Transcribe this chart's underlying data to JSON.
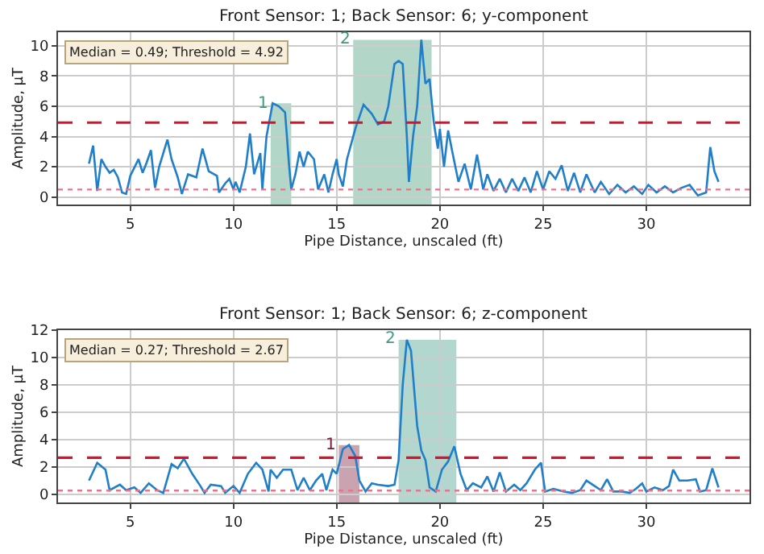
{
  "chart_data": [
    {
      "type": "line",
      "title": "Front Sensor: 1; Back Sensor: 6; y-component",
      "xlabel": "Pipe Distance, unscaled (ft)",
      "ylabel": "Amplitude, μT",
      "x": [
        3.0,
        3.2,
        3.4,
        3.6,
        3.8,
        4.0,
        4.2,
        4.4,
        4.6,
        4.8,
        5.0,
        5.4,
        5.6,
        5.8,
        6.0,
        6.2,
        6.4,
        6.8,
        7.0,
        7.3,
        7.5,
        7.8,
        8.2,
        8.5,
        8.8,
        9.2,
        9.3,
        9.6,
        9.8,
        10.0,
        10.1,
        10.3,
        10.6,
        10.8,
        11.0,
        11.3,
        11.4,
        11.6,
        11.9,
        12.2,
        12.5,
        12.7,
        12.8,
        13.0,
        13.2,
        13.4,
        13.6,
        13.9,
        14.1,
        14.4,
        14.6,
        14.8,
        15.0,
        15.1,
        15.3,
        15.5,
        15.9,
        16.3,
        16.7,
        17.0,
        17.3,
        17.5,
        17.8,
        18.0,
        18.2,
        18.4,
        18.5,
        18.7,
        18.9,
        19.1,
        19.3,
        19.5,
        19.7,
        19.9,
        20.0,
        20.2,
        20.4,
        20.6,
        20.9,
        21.2,
        21.5,
        21.8,
        22.1,
        22.3,
        22.6,
        22.9,
        23.2,
        23.5,
        23.8,
        24.1,
        24.4,
        24.7,
        25.0,
        25.3,
        25.6,
        25.9,
        26.2,
        26.5,
        26.8,
        27.1,
        27.5,
        27.8,
        28.2,
        28.6,
        29.0,
        29.4,
        29.8,
        30.1,
        30.5,
        30.9,
        31.3,
        31.7,
        32.1,
        32.5,
        32.9,
        33.1,
        33.3,
        33.5
      ],
      "series": [
        {
          "color": "#1f7fc8",
          "values": [
            2.2,
            3.4,
            0.4,
            2.5,
            2.0,
            1.6,
            1.8,
            1.3,
            0.3,
            0.2,
            1.4,
            2.5,
            1.6,
            2.3,
            3.1,
            0.6,
            2.0,
            3.8,
            2.5,
            1.3,
            0.2,
            1.5,
            1.3,
            3.2,
            1.7,
            1.4,
            0.3,
            0.9,
            1.2,
            0.5,
            1.0,
            0.3,
            2.0,
            4.2,
            1.5,
            2.9,
            0.5,
            4.0,
            6.2,
            6.0,
            5.6,
            2.0,
            0.5,
            1.5,
            3.0,
            2.0,
            3.0,
            2.5,
            0.5,
            1.5,
            0.3,
            1.5,
            2.5,
            1.5,
            0.7,
            2.5,
            4.5,
            6.1,
            5.5,
            4.8,
            5.0,
            6.0,
            8.8,
            9.0,
            8.8,
            4.0,
            1.0,
            4.0,
            6.0,
            10.4,
            7.5,
            7.8,
            5.0,
            3.2,
            4.5,
            2.0,
            4.4,
            3.0,
            1.0,
            2.2,
            0.5,
            2.8,
            0.5,
            1.5,
            0.4,
            1.2,
            0.3,
            1.2,
            0.4,
            1.3,
            0.3,
            1.7,
            0.5,
            1.7,
            1.2,
            2.1,
            0.4,
            1.6,
            0.3,
            1.5,
            0.3,
            1.0,
            0.2,
            0.8,
            0.3,
            0.7,
            0.2,
            0.8,
            0.3,
            0.7,
            0.3,
            0.6,
            0.8,
            0.1,
            0.3,
            3.3,
            1.7,
            1.0
          ]
        }
      ],
      "xlim": [
        1.5,
        35
      ],
      "xticks": [
        5,
        10,
        15,
        20,
        25,
        30
      ],
      "ylim": [
        -0.5,
        10.9
      ],
      "yticks": [
        0,
        2,
        4,
        6,
        8,
        10
      ],
      "grid": true,
      "legend": false,
      "ref_lines": [
        {
          "axis": "y",
          "value": 0.49,
          "color": "#e8748c",
          "line_style": "dotted"
        },
        {
          "axis": "y",
          "value": 4.92,
          "color": "#d0152f",
          "line_style": "dashed"
        }
      ],
      "bands": [
        {
          "axis": "x",
          "from": 11.8,
          "to": 12.8,
          "label": "1",
          "color": "#3f9a78"
        },
        {
          "axis": "x",
          "from": 15.8,
          "to": 19.6,
          "label": "2",
          "color": "#3f9a78"
        }
      ],
      "annotations": [
        "Median = 0.49; Threshold = 4.92"
      ]
    },
    {
      "type": "line",
      "title": "Front Sensor: 1; Back Sensor: 6; z-component",
      "xlabel": "Pipe Distance, unscaled (ft)",
      "ylabel": "Amplitude, μT",
      "x": [
        3.0,
        3.4,
        3.8,
        4.0,
        4.5,
        4.8,
        5.2,
        5.5,
        5.9,
        6.3,
        6.6,
        7.0,
        7.3,
        7.6,
        8.0,
        8.4,
        8.6,
        8.9,
        9.4,
        9.6,
        10.0,
        10.3,
        10.7,
        11.1,
        11.4,
        11.7,
        11.8,
        12.1,
        12.4,
        12.8,
        13.1,
        13.4,
        13.7,
        14.0,
        14.3,
        14.5,
        14.8,
        15.0,
        15.3,
        15.6,
        15.9,
        16.1,
        16.4,
        16.7,
        17.0,
        17.5,
        17.8,
        18.0,
        18.2,
        18.4,
        18.6,
        18.9,
        19.1,
        19.3,
        19.5,
        19.8,
        20.1,
        20.4,
        20.7,
        21.0,
        21.3,
        21.6,
        22.0,
        22.3,
        22.6,
        22.9,
        23.2,
        23.6,
        23.9,
        24.2,
        24.6,
        24.9,
        25.1,
        25.5,
        26.0,
        26.4,
        26.8,
        27.1,
        27.5,
        27.8,
        28.1,
        28.4,
        28.8,
        29.2,
        29.5,
        29.8,
        30.0,
        30.4,
        30.8,
        31.1,
        31.3,
        31.6,
        32.0,
        32.4,
        32.6,
        32.9,
        33.2,
        33.5
      ],
      "series": [
        {
          "color": "#1f7fc8",
          "values": [
            1.0,
            2.3,
            1.8,
            0.3,
            0.7,
            0.3,
            0.5,
            0.1,
            0.8,
            0.3,
            0.1,
            2.2,
            1.9,
            2.6,
            1.5,
            0.6,
            0.1,
            0.7,
            0.6,
            0.1,
            0.6,
            0.1,
            1.5,
            2.3,
            1.8,
            0.2,
            1.8,
            1.2,
            1.8,
            1.8,
            0.3,
            1.2,
            0.3,
            1.0,
            1.5,
            0.3,
            1.8,
            1.5,
            3.3,
            3.6,
            2.8,
            1.0,
            0.2,
            0.8,
            0.7,
            0.6,
            0.7,
            2.5,
            8.0,
            11.3,
            10.5,
            5.0,
            3.2,
            2.5,
            0.5,
            0.2,
            1.8,
            2.4,
            3.5,
            1.5,
            0.3,
            0.8,
            0.5,
            1.3,
            0.2,
            1.6,
            0.2,
            0.7,
            0.3,
            0.8,
            1.8,
            2.3,
            0.2,
            0.4,
            0.2,
            0.1,
            0.3,
            1.0,
            0.6,
            0.3,
            1.1,
            0.2,
            0.2,
            0.1,
            0.4,
            0.8,
            0.2,
            0.5,
            0.3,
            0.6,
            1.8,
            1.0,
            1.0,
            1.1,
            0.2,
            0.3,
            1.9,
            0.5
          ]
        }
      ],
      "xlim": [
        1.5,
        35
      ],
      "xticks": [
        5,
        10,
        15,
        20,
        25,
        30
      ],
      "ylim": [
        -0.6,
        12
      ],
      "yticks": [
        0,
        2,
        4,
        6,
        8,
        10,
        12
      ],
      "grid": true,
      "legend": false,
      "ref_lines": [
        {
          "axis": "y",
          "value": 0.27,
          "color": "#e8748c",
          "line_style": "dotted"
        },
        {
          "axis": "y",
          "value": 2.67,
          "color": "#d0152f",
          "line_style": "dashed"
        }
      ],
      "bands": [
        {
          "axis": "x",
          "from": 15.1,
          "to": 16.1,
          "label": "1",
          "color": "#7a1a3a"
        },
        {
          "axis": "x",
          "from": 18.0,
          "to": 20.8,
          "label": "2",
          "color": "#3f9a88"
        }
      ],
      "annotations": [
        "Median = 0.27; Threshold = 2.67"
      ]
    }
  ]
}
